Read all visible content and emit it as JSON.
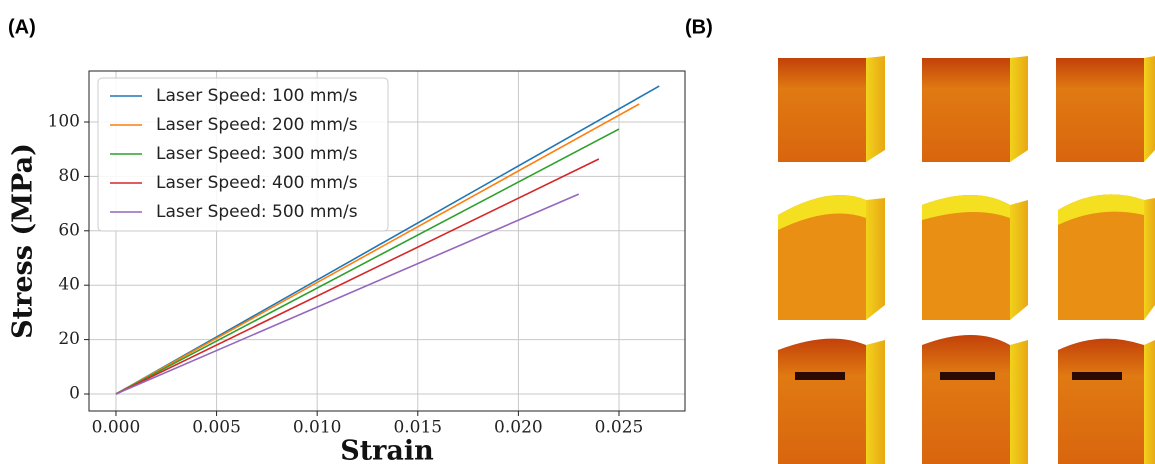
{
  "panel_labels": [
    "(A)",
    "(B)"
  ],
  "chart_data": {
    "type": "line",
    "x_label": "Strain",
    "y_label": "Stress (MPa)",
    "series": [
      {
        "name": "Laser Speed: 100 mm/s",
        "color": "#1f77b4",
        "x": [
          0,
          0.027
        ],
        "values": [
          0,
          113.2
        ]
      },
      {
        "name": "Laser Speed: 200 mm/s",
        "color": "#ff7f0e",
        "x": [
          0,
          0.026
        ],
        "values": [
          0,
          106.6
        ]
      },
      {
        "name": "Laser Speed: 300 mm/s",
        "color": "#2ca02c",
        "x": [
          0,
          0.025
        ],
        "values": [
          0,
          97.4
        ]
      },
      {
        "name": "Laser Speed: 400 mm/s",
        "color": "#d62728",
        "x": [
          0,
          0.024
        ],
        "values": [
          0,
          86.4
        ]
      },
      {
        "name": "Laser Speed: 500 mm/s",
        "color": "#9467bd",
        "x": [
          0,
          0.023
        ],
        "values": [
          0,
          73.5
        ]
      }
    ],
    "xlim": [
      -0.00134,
      0.02828
    ],
    "ylim": [
      -6.25,
      118.75
    ],
    "xticks": [
      {
        "value": 0,
        "label": "0.000"
      },
      {
        "value": 0.005,
        "label": "0.005"
      },
      {
        "value": 0.01,
        "label": "0.010"
      },
      {
        "value": 0.015,
        "label": "0.015"
      },
      {
        "value": 0.02,
        "label": "0.020"
      },
      {
        "value": 0.025,
        "label": "0.025"
      }
    ],
    "yticks": [
      0,
      20,
      40,
      60,
      80,
      100
    ],
    "grid": true,
    "legend": "upper left"
  }
}
